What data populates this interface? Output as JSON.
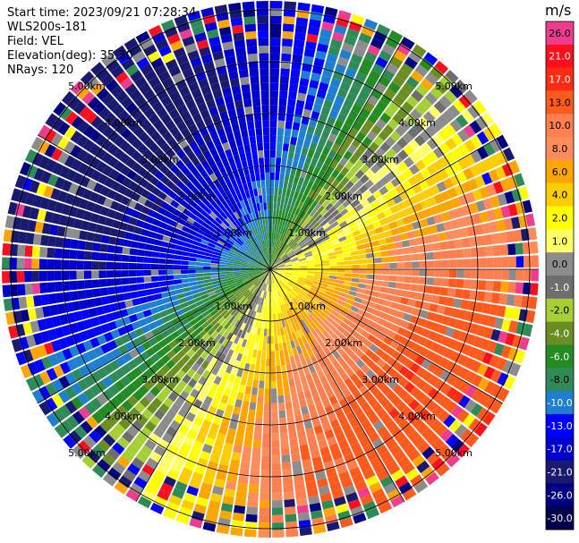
{
  "header": {
    "start_time": "Start time: 2023/09/21 07:28:34",
    "instrument": "WLS200s-181",
    "field": "Field: VEL",
    "elevation": "Elevation(deg): 35.30",
    "nrays": "NRays: 120"
  },
  "colorbar": {
    "unit": "m/s",
    "ticks": [
      "26.0",
      "21.0",
      "17.0",
      "13.0",
      "10.0",
      "8.0",
      "6.0",
      "4.0",
      "2.0",
      "1.0",
      "0.0",
      "-1.0",
      "-2.0",
      "-4.0",
      "-6.0",
      "-8.0",
      "-10.0",
      "-13.0",
      "-17.0",
      "-21.0",
      "-26.0",
      "-30.0"
    ],
    "colors": [
      "#ee3d8e",
      "#ff0f1e",
      "#ff2a14",
      "#ff5a1e",
      "#ff7e4e",
      "#ff8c5a",
      "#ffa500",
      "#ffcc00",
      "#ffff00",
      "#ffff66",
      "#8c8c8c",
      "#6e6e6e",
      "#a6cf35",
      "#6b8e23",
      "#228b22",
      "#2e8b57",
      "#1e7fd0",
      "#0000ff",
      "#0000cd",
      "#191970",
      "#000080",
      "#00004a"
    ]
  },
  "chart_data": {
    "type": "ppi",
    "field": "VEL",
    "units": "m/s",
    "range_rings_km": [
      1.0,
      2.0,
      3.0,
      4.0,
      5.0
    ],
    "ring_labels": [
      "1.00km",
      "2.00km",
      "3.00km",
      "4.00km",
      "5.00km"
    ],
    "n_rays": 120,
    "spokes_deg": [
      0,
      30,
      60,
      90,
      120,
      150,
      180,
      210,
      240,
      270,
      300,
      330
    ],
    "velocity_range": [
      -30,
      26
    ],
    "wind_pattern": {
      "max_positive_dir_deg": 130,
      "peak_positive_ms": 17,
      "peak_negative_ms": -10
    }
  }
}
